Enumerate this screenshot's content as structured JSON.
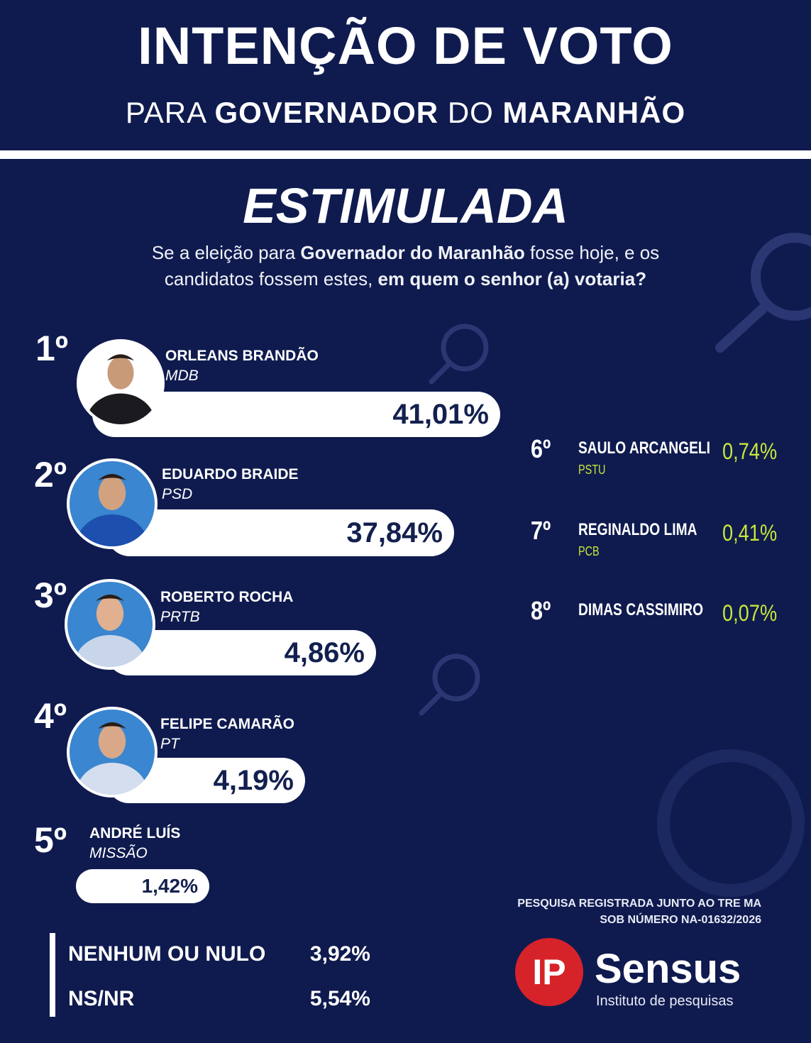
{
  "header": {
    "title": "INTENÇÃO DE VOTO",
    "subtitle": [
      "PARA",
      "GOVERNADOR",
      "DO",
      "MARANHÃO"
    ]
  },
  "section": "ESTIMULADA",
  "question": [
    "Se a eleição para",
    "Governador do Maranhão",
    "fosse hoje, e os candidatos fossem estes,",
    "em quem o senhor (a) votaria?"
  ],
  "candidates": [
    {
      "rank": "1º",
      "name": "ORLEANS BRANDÃO",
      "party": "MDB",
      "percent": "41,01%"
    },
    {
      "rank": "2º",
      "name": "EDUARDO BRAIDE",
      "party": "PSD",
      "percent": "37,84%"
    },
    {
      "rank": "3º",
      "name": "ROBERTO ROCHA",
      "party": "PRTB",
      "percent": "4,86%"
    },
    {
      "rank": "4º",
      "name": "FELIPE CAMARÃO",
      "party": "PT",
      "percent": "4,19%"
    },
    {
      "rank": "5º",
      "name": "ANDRÉ LUÍS",
      "party": "MISSÃO",
      "percent": "1,42%"
    }
  ],
  "minor_candidates": [
    {
      "rank": "6º",
      "name": "SAULO ARCANGELI",
      "party": "PSTU",
      "percent": "0,74%"
    },
    {
      "rank": "7º",
      "name": "REGINALDO LIMA",
      "party": "PCB",
      "percent": "0,41%"
    },
    {
      "rank": "8º",
      "name": "DIMAS CASSIMIRO",
      "percent": "0,07%"
    }
  ],
  "others": [
    {
      "label": "NENHUM OU NULO",
      "percent": "3,92%"
    },
    {
      "label": "NS/NR",
      "percent": "5,54%"
    }
  ],
  "note": [
    "PESQUISA REGISTRADA JUNTO AO TRE MA",
    "SOB NÚMERO NA-01632/2026"
  ],
  "logo": {
    "mark": "IP",
    "name": "Sensus",
    "tagline": "Instituto de pesquisas"
  }
}
